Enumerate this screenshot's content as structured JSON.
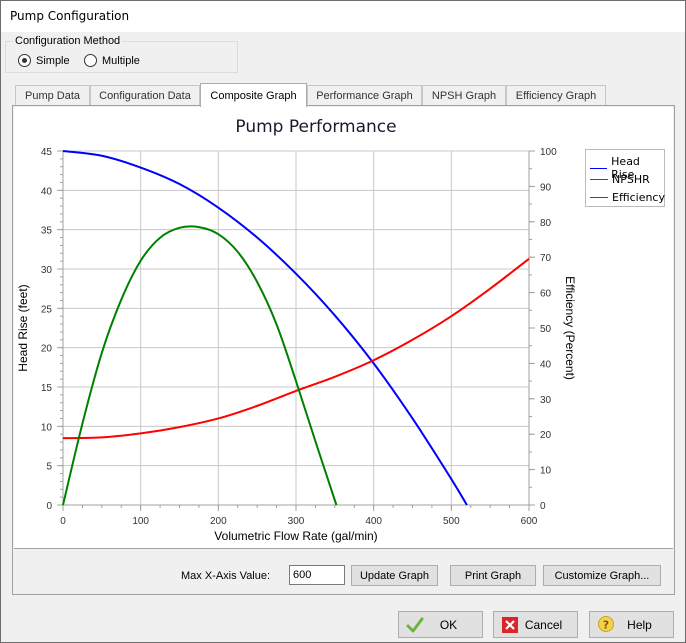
{
  "window": {
    "title": "Pump Configuration"
  },
  "config_method": {
    "legend": "Configuration Method",
    "options": [
      {
        "label": "Simple",
        "checked": true
      },
      {
        "label": "Multiple",
        "checked": false
      }
    ]
  },
  "tabs": [
    {
      "label": "Pump Data",
      "active": false
    },
    {
      "label": "Configuration Data",
      "active": false
    },
    {
      "label": "Composite Graph",
      "active": true
    },
    {
      "label": "Performance Graph",
      "active": false
    },
    {
      "label": "NPSH Graph",
      "active": false
    },
    {
      "label": "Efficiency Graph",
      "active": false
    }
  ],
  "graph_controls": {
    "max_x_label": "Max X-Axis Value:",
    "max_x_value": "600",
    "update_label": "Update Graph",
    "print_label": "Print Graph",
    "customize_label": "Customize Graph..."
  },
  "dialog_buttons": {
    "ok": "OK",
    "cancel": "Cancel",
    "help": "Help"
  },
  "chart_data": {
    "type": "line",
    "title": "Pump Performance",
    "xlabel": "Volumetric Flow Rate (gal/min)",
    "ylabel": "Head Rise (feet)",
    "y2label": "Efficiency (Percent)",
    "xlim": [
      0,
      600
    ],
    "ylim": [
      0,
      45
    ],
    "y2lim": [
      0,
      100
    ],
    "x_ticks": [
      0,
      100,
      200,
      300,
      400,
      500,
      600
    ],
    "y_ticks": [
      0,
      5,
      10,
      15,
      20,
      25,
      30,
      35,
      40,
      45
    ],
    "y2_ticks": [
      0,
      10,
      20,
      30,
      40,
      50,
      60,
      70,
      80,
      90,
      100
    ],
    "grid": true,
    "legend_position": "top-right-outside",
    "series": [
      {
        "name": "Head Rise",
        "color": "#0000ff",
        "axis": "left",
        "x": [
          0,
          50,
          100,
          150,
          200,
          250,
          300,
          350,
          400,
          450,
          500,
          520
        ],
        "y": [
          45,
          44.4,
          42.9,
          40.8,
          37.8,
          34.0,
          29.4,
          24.1,
          18.0,
          11.0,
          3.3,
          0
        ]
      },
      {
        "name": "NPSHR",
        "color": "#ff0000",
        "axis": "left",
        "x": [
          0,
          50,
          100,
          150,
          200,
          250,
          300,
          350,
          400,
          450,
          500,
          550,
          600
        ],
        "y": [
          8.5,
          8.6,
          9.1,
          9.9,
          11.0,
          12.6,
          14.5,
          16.3,
          18.4,
          21.0,
          24.0,
          27.5,
          31.3
        ]
      },
      {
        "name": "Efficiency",
        "color": "#008000",
        "axis": "right",
        "x": [
          0,
          25,
          50,
          75,
          100,
          125,
          150,
          175,
          200,
          225,
          250,
          275,
          300,
          325,
          352
        ],
        "y": [
          0,
          23,
          43,
          58,
          69,
          75.5,
          78.3,
          78.5,
          76.5,
          71.5,
          63,
          51,
          35,
          18,
          0
        ]
      }
    ]
  }
}
